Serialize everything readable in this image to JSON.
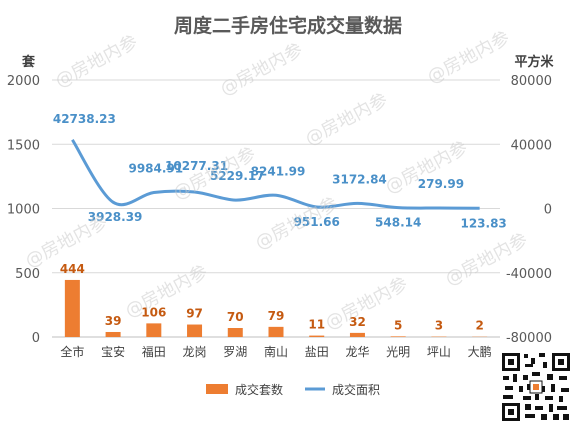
{
  "chart_data": {
    "type": "bar+line",
    "title": "周度二手房住宅成交量数据",
    "categories": [
      "全市",
      "宝安",
      "福田",
      "龙岗",
      "罗湖",
      "南山",
      "盐田",
      "龙华",
      "光明",
      "坪山",
      "大鹏"
    ],
    "series": [
      {
        "name": "成交套数",
        "type": "bar",
        "axis": "left",
        "values": [
          444,
          39,
          106,
          97,
          70,
          79,
          11,
          32,
          5,
          3,
          2
        ]
      },
      {
        "name": "成交面积",
        "type": "line",
        "axis": "right",
        "values": [
          42738.23,
          3928.39,
          9984.91,
          10277.31,
          5229.17,
          8241.99,
          951.66,
          3172.84,
          548.14,
          279.99,
          123.83
        ]
      }
    ],
    "bar_labels": [
      "444",
      "39",
      "106",
      "97",
      "70",
      "79",
      "11",
      "32",
      "5",
      "3",
      "2"
    ],
    "line_labels": [
      "42738.23",
      "3928.39",
      "9984.91",
      "10277.31",
      "5229.17",
      "8241.99",
      "951.66",
      "3172.84",
      "548.14",
      "279.99",
      "123.83"
    ],
    "y_left": {
      "label": "套",
      "ticks": [
        "0",
        "500",
        "1000",
        "1500",
        "2000"
      ],
      "ylim": [
        0,
        2000
      ]
    },
    "y_right": {
      "label": "平方米",
      "ticks": [
        "-80000",
        "-40000",
        "0",
        "40000",
        "80000"
      ],
      "ylim": [
        -80000,
        80000
      ]
    },
    "legend": {
      "position": "bottom",
      "items": [
        "成交套数",
        "成交面积"
      ]
    },
    "colors": {
      "bar": "#ed7d31",
      "line": "#5b9bd5",
      "title": "#595959",
      "axis_text": "#595959",
      "grid": "#d9d9d9"
    },
    "grid": true
  },
  "watermark": "@房地内参",
  "qr_icon": "qr-code-icon"
}
